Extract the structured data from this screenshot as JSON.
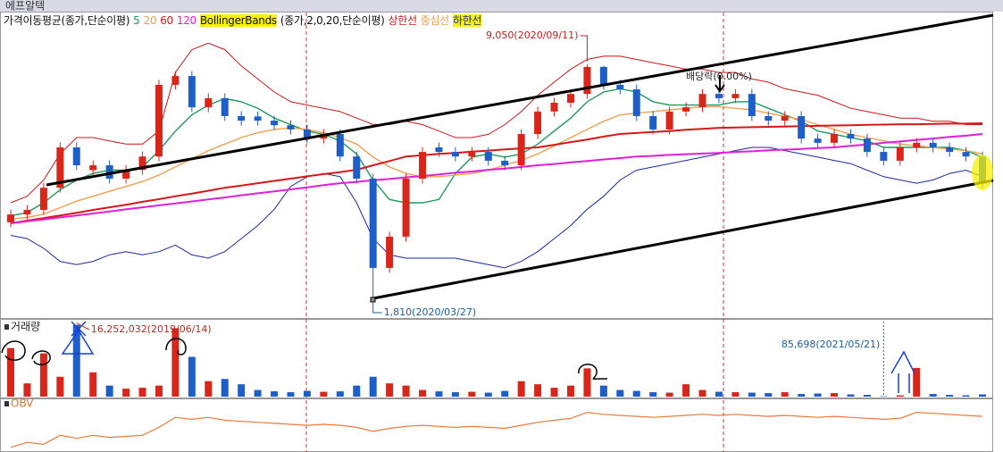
{
  "header": {
    "title": "에프알텍"
  },
  "chart_data": [
    {
      "type": "candlestick",
      "legend_title": "가격이동평균(종가,단순이평)",
      "up_color": "#d8261a",
      "down_color": "#1d5fc6",
      "ylim": [
        1290,
        10530
      ],
      "open": [
        4200,
        4440,
        4580,
        5260,
        6500,
        5800,
        5950,
        5540,
        5810,
        6220,
        8420,
        8690,
        7730,
        8010,
        7460,
        7450,
        7320,
        7180,
        7050,
        6770,
        6910,
        6220,
        5540,
        2800,
        3760,
        5540,
        6500,
        6360,
        6220,
        6360,
        6090,
        5950,
        6910,
        7600,
        7870,
        8140,
        8970,
        8420,
        8280,
        7460,
        7050,
        7600,
        7730,
        8140,
        8010,
        8140,
        7460,
        7320,
        7460,
        6770,
        6640,
        6910,
        6770,
        6360,
        6090,
        6500,
        6640,
        6500,
        6360,
        6220
      ],
      "high": [
        4590,
        4730,
        5410,
        6650,
        6650,
        6100,
        6100,
        5960,
        6370,
        8570,
        8840,
        8840,
        8160,
        8160,
        7610,
        7600,
        7470,
        7330,
        7200,
        7060,
        7060,
        6370,
        5690,
        3910,
        5690,
        6510,
        6650,
        6510,
        6510,
        6510,
        6240,
        7060,
        7750,
        8020,
        8290,
        9050,
        9000,
        8570,
        8430,
        7610,
        7750,
        7880,
        8290,
        8290,
        8290,
        8290,
        7610,
        7610,
        7610,
        6920,
        7060,
        7060,
        6920,
        6510,
        6650,
        6790,
        6790,
        6650,
        6510,
        6370
      ],
      "low": [
        4050,
        4290,
        4430,
        5110,
        5800,
        5650,
        5390,
        5390,
        5660,
        6070,
        8270,
        7580,
        7580,
        7310,
        7170,
        7170,
        7030,
        6900,
        6620,
        6620,
        6070,
        5390,
        1810,
        2650,
        3610,
        5390,
        6210,
        6070,
        6070,
        5940,
        5800,
        5800,
        6760,
        7450,
        7720,
        7990,
        8270,
        8130,
        7310,
        6900,
        6900,
        7450,
        7580,
        7860,
        7860,
        7310,
        7170,
        7170,
        6620,
        6490,
        6490,
        6620,
        6210,
        5940,
        5940,
        6350,
        6350,
        6210,
        6070,
        5250
      ],
      "close": [
        4440,
        4580,
        5260,
        6500,
        5950,
        5950,
        5540,
        5810,
        6220,
        8420,
        8690,
        7730,
        8010,
        7460,
        7320,
        7320,
        7180,
        7050,
        6770,
        6910,
        6220,
        5540,
        2800,
        3760,
        5540,
        6360,
        6360,
        6220,
        6360,
        6090,
        5950,
        6910,
        7600,
        7870,
        8140,
        8970,
        8420,
        8280,
        7460,
        7050,
        7600,
        7730,
        8140,
        8010,
        8140,
        7460,
        7320,
        7460,
        6770,
        6640,
        6910,
        6770,
        6360,
        6090,
        6500,
        6640,
        6500,
        6360,
        6220,
        5400
      ],
      "series": [
        {
          "name": "5",
          "color": "#1f9a5a",
          "values": [
            4400,
            4500,
            4800,
            5200,
            5500,
            5700,
            5800,
            5800,
            5900,
            6400,
            7000,
            7500,
            7800,
            8000,
            7900,
            7700,
            7400,
            7200,
            7000,
            6900,
            6700,
            6300,
            5500,
            4900,
            4800,
            4800,
            4900,
            5700,
            6200,
            6300,
            6200,
            6300,
            6600,
            7000,
            7400,
            7900,
            8200,
            8300,
            8200,
            7900,
            7800,
            7800,
            7800,
            7800,
            7900,
            7900,
            7700,
            7500,
            7300,
            7000,
            6900,
            6800,
            6700,
            6500,
            6500,
            6500,
            6500,
            6500,
            6400,
            6200
          ]
        },
        {
          "name": "20",
          "color": "#f0a050",
          "values": [
            4300,
            4350,
            4450,
            4650,
            4850,
            5000,
            5150,
            5300,
            5450,
            5650,
            5900,
            6150,
            6400,
            6600,
            6800,
            6950,
            7050,
            7100,
            7050,
            6950,
            6800,
            6600,
            6200,
            5900,
            5700,
            5600,
            5600,
            5650,
            5700,
            5800,
            5950,
            6100,
            6300,
            6550,
            6800,
            7050,
            7300,
            7500,
            7550,
            7600,
            7650,
            7700,
            7750,
            7750,
            7700,
            7650,
            7550,
            7450,
            7350,
            7200,
            7050,
            6900,
            6800,
            6700,
            6600,
            6550,
            6500,
            6450,
            6400,
            6300
          ]
        },
        {
          "name": "60",
          "color": "#d81818",
          "values": [
            4170,
            4250,
            4330,
            4410,
            4490,
            4580,
            4660,
            4740,
            4830,
            4910,
            5000,
            5080,
            5170,
            5260,
            5330,
            5400,
            5470,
            5540,
            5610,
            5680,
            5740,
            5810,
            5950,
            6080,
            6220,
            6260,
            6300,
            6330,
            6370,
            6400,
            6440,
            6470,
            6500,
            6580,
            6660,
            6740,
            6830,
            6910,
            6940,
            6970,
            7000,
            7040,
            7070,
            7100,
            7110,
            7120,
            7130,
            7140,
            7150,
            7160,
            7170,
            7180,
            7190,
            7200,
            7210,
            7210,
            7220,
            7230,
            7230,
            7240
          ]
        },
        {
          "name": "120",
          "color": "#e020d8",
          "values": [
            4170,
            4230,
            4290,
            4350,
            4410,
            4470,
            4530,
            4600,
            4660,
            4720,
            4780,
            4840,
            4900,
            4960,
            5030,
            5090,
            5150,
            5210,
            5270,
            5340,
            5400,
            5440,
            5490,
            5530,
            5580,
            5620,
            5670,
            5720,
            5760,
            5810,
            5850,
            5900,
            5950,
            5990,
            6040,
            6080,
            6130,
            6170,
            6220,
            6240,
            6270,
            6290,
            6310,
            6330,
            6360,
            6380,
            6410,
            6430,
            6450,
            6480,
            6500,
            6550,
            6590,
            6640,
            6680,
            6730,
            6770,
            6820,
            6860,
            6910
          ]
        }
      ],
      "bollinger": {
        "label": "BollingerBands",
        "params": "(종가,2,0,20,단순이평)",
        "upper": {
          "name": "상한선",
          "color": "#c81818",
          "values": [
            4800,
            5000,
            5500,
            6300,
            6800,
            6800,
            6700,
            6600,
            6600,
            7000,
            8800,
            9500,
            9700,
            9500,
            9000,
            8600,
            8200,
            7900,
            7800,
            7700,
            7600,
            7400,
            7200,
            7200,
            7300,
            7200,
            7000,
            6800,
            6800,
            6900,
            7200,
            7600,
            8100,
            8500,
            8900,
            9200,
            9300,
            9300,
            9200,
            9100,
            9000,
            8900,
            8900,
            8800,
            8800,
            8600,
            8500,
            8300,
            8200,
            8100,
            7900,
            7700,
            7600,
            7500,
            7400,
            7400,
            7300,
            7300,
            7200,
            7200
          ]
        },
        "middle": {
          "name": "중심선",
          "color": "#f0a050"
        },
        "lower": {
          "name": "하한선",
          "color": "#1a2a9a",
          "values": [
            3800,
            3700,
            3400,
            3000,
            2900,
            3000,
            3200,
            3300,
            3200,
            3300,
            3500,
            3200,
            3100,
            3300,
            3700,
            4100,
            4600,
            5300,
            5600,
            5700,
            5600,
            4800,
            3700,
            3200,
            3100,
            3100,
            3100,
            3100,
            3000,
            2900,
            2800,
            3000,
            3300,
            3700,
            4100,
            4600,
            5000,
            5500,
            5800,
            5900,
            6000,
            6100,
            6200,
            6300,
            6400,
            6500,
            6500,
            6400,
            6300,
            6200,
            6100,
            6000,
            5800,
            5600,
            5500,
            5400,
            5500,
            5700,
            5800,
            5600
          ]
        }
      },
      "high_label": "9,050(2020/09/11)",
      "low_label": "1,810(2020/03/27)",
      "dividend_label": "배당락(0.00%)"
    },
    {
      "type": "bar",
      "title": "거래량",
      "values": [
        11000000,
        3000000,
        9800000,
        4500000,
        16252032,
        5500000,
        2500000,
        1800000,
        2000000,
        2500000,
        15500000,
        9000000,
        3500000,
        4000000,
        2800000,
        1500000,
        1200000,
        1000000,
        1300000,
        1100000,
        1200000,
        2500000,
        4500000,
        3000000,
        2500000,
        1500000,
        1200000,
        1000000,
        1100000,
        900000,
        1300000,
        3500000,
        2800000,
        2000000,
        2500000,
        6400000,
        2500000,
        1500000,
        1300000,
        1000000,
        900000,
        2800000,
        1500000,
        1100000,
        1000000,
        900000,
        800000,
        1000000,
        600000,
        700000,
        800000,
        500000,
        400000,
        85698,
        300000,
        6500000,
        600000,
        400000,
        300000,
        500000
      ],
      "ylim": [
        0,
        17000000
      ],
      "max_label": "16,252,032(2019/06/14)",
      "min_label": "85,698(2021/05/21)"
    },
    {
      "type": "line",
      "title": "OBV",
      "color": "#e87a3a",
      "values": [
        0,
        5000000,
        3000000,
        12000000,
        9000000,
        12000000,
        10000000,
        11000000,
        12000000,
        20000000,
        30000000,
        28000000,
        30000000,
        27000000,
        26000000,
        25000000,
        24000000,
        23000000,
        22000000,
        23000000,
        22000000,
        20000000,
        16000000,
        19000000,
        21000000,
        22000000,
        21000000,
        20000000,
        21000000,
        20000000,
        19000000,
        22000000,
        25000000,
        27000000,
        29000000,
        35000000,
        33000000,
        32000000,
        31000000,
        30000000,
        31000000,
        32000000,
        33000000,
        32000000,
        33000000,
        32000000,
        31000000,
        32000000,
        31000000,
        30000000,
        31000000,
        30000000,
        29000000,
        28000000,
        29000000,
        35000000,
        34000000,
        33000000,
        32000000,
        31000000
      ],
      "ylim": [
        -2000000,
        40000000
      ]
    }
  ]
}
